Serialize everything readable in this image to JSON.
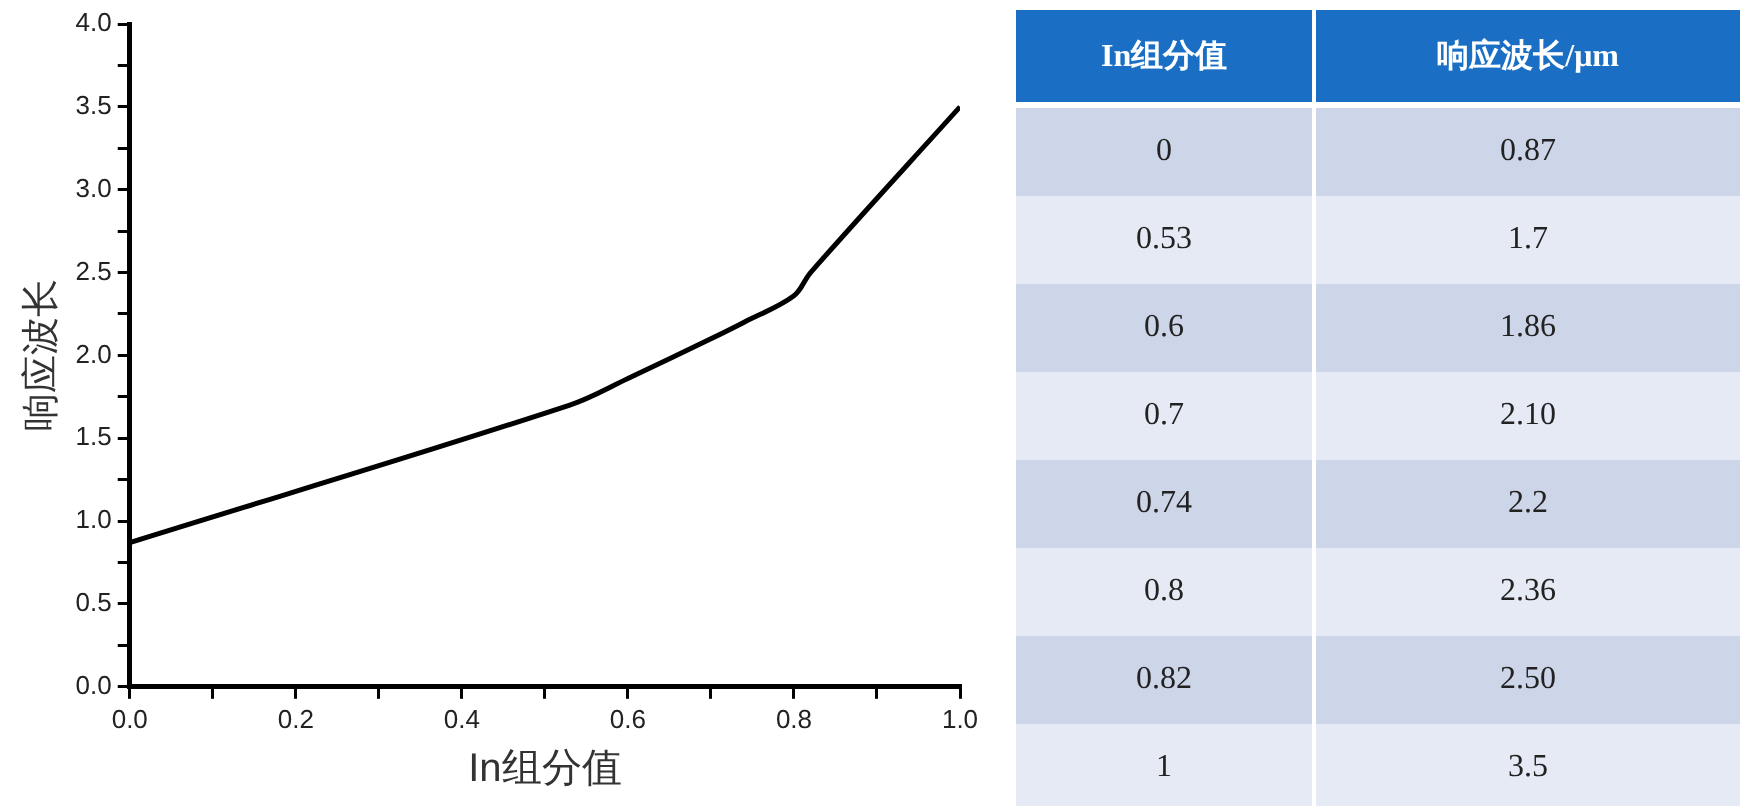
{
  "chart_data": [
    {
      "type": "line",
      "xlabel": "In组分值",
      "ylabel": "响应波长",
      "x": [
        0,
        0.53,
        0.6,
        0.7,
        0.74,
        0.8,
        0.82,
        1
      ],
      "series": [
        {
          "color": "#000000",
          "values": [
            0.87,
            1.7,
            1.86,
            2.1,
            2.2,
            2.36,
            2.5,
            3.5
          ]
        }
      ],
      "xlim": [
        0,
        1
      ],
      "xticks": [
        {
          "value": 0,
          "label": "0.0"
        },
        {
          "value": 0.2,
          "label": "0.2"
        },
        {
          "value": 0.4,
          "label": "0.4"
        },
        {
          "value": 0.6,
          "label": "0.6"
        },
        {
          "value": 0.8,
          "label": "0.8"
        },
        {
          "value": 1,
          "label": "1.0"
        }
      ],
      "ylim": [
        0,
        4
      ],
      "yticks": [
        {
          "value": 0,
          "label": "0.0"
        },
        0.5,
        {
          "value": 1,
          "label": "1.0"
        },
        1.5,
        {
          "value": 2,
          "label": "2.0"
        },
        2.5,
        {
          "value": 3,
          "label": "3.0"
        },
        3.5,
        {
          "value": 4,
          "label": "4.0"
        }
      ],
      "grid": false,
      "legend": false,
      "marker": "none",
      "line_style": "solid"
    },
    {
      "type": "other",
      "annotations": [
        "In组分值",
        "响应波长/μm",
        "0",
        "0.87",
        "0.53",
        "1.7",
        "0.6",
        "1.86",
        "0.7",
        "2.10",
        "0.74",
        "2.2",
        "0.8",
        "2.36",
        "0.82",
        "2.50",
        "1",
        "3.5"
      ]
    }
  ]
}
